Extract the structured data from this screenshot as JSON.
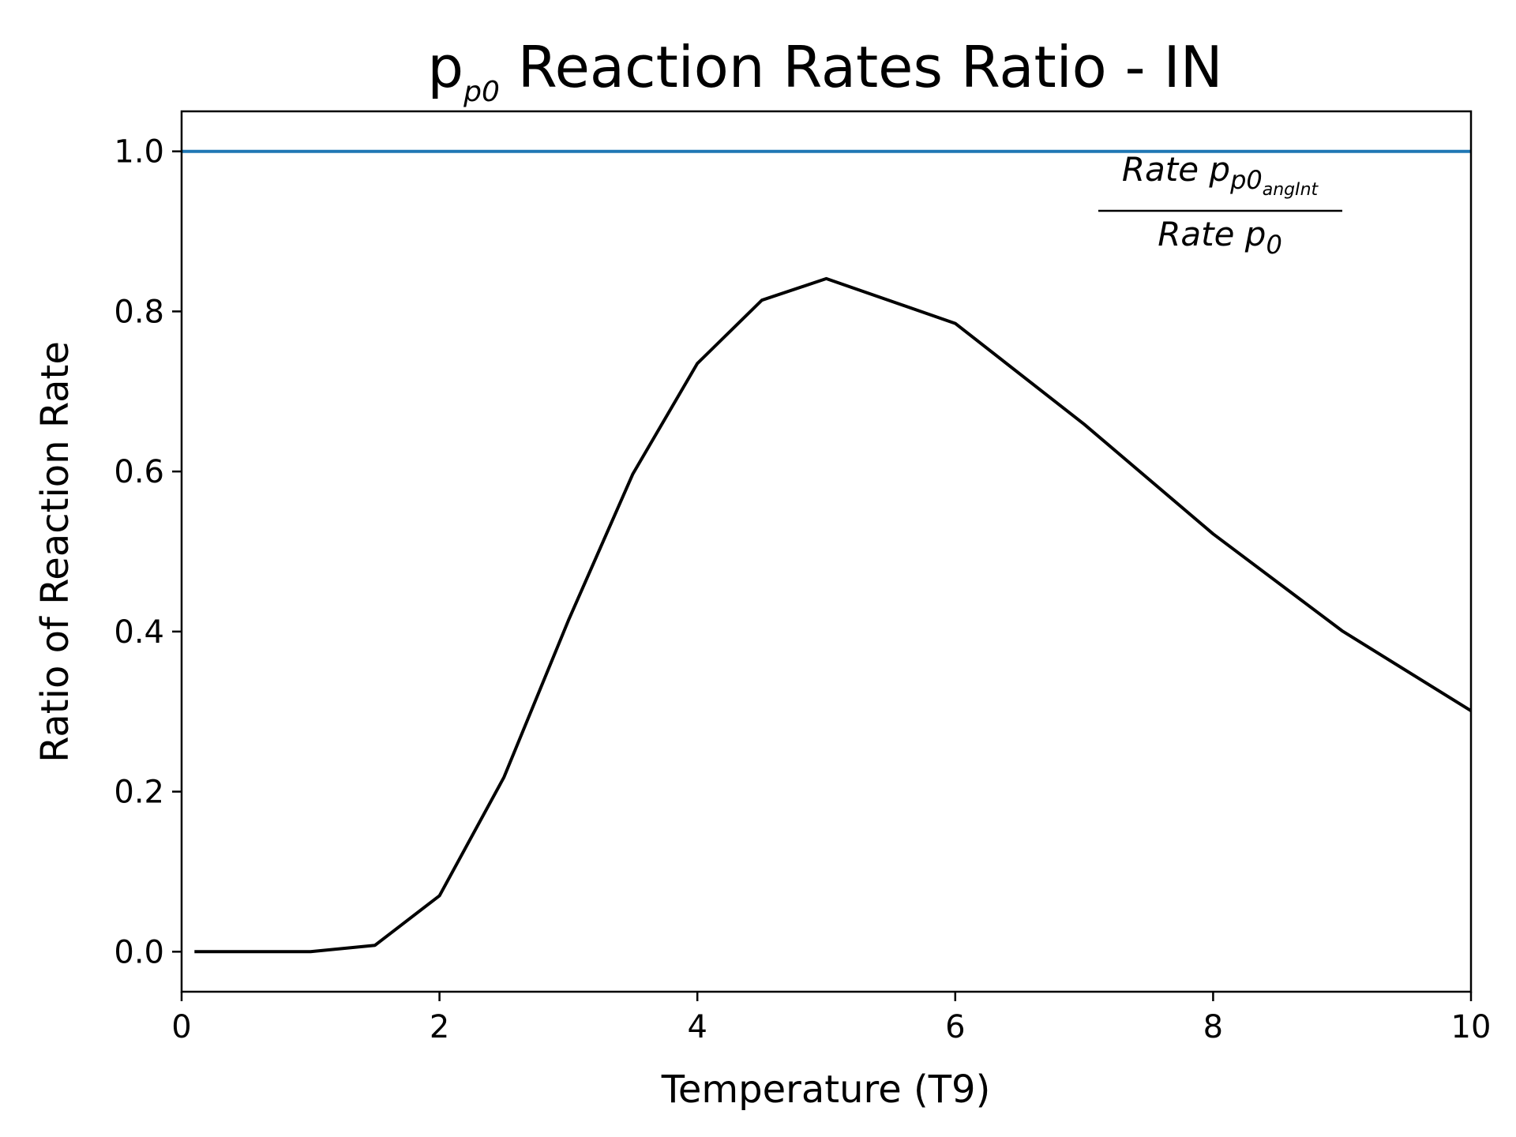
{
  "chart_data": {
    "type": "line",
    "title": {
      "main": "p",
      "sub": "p0",
      "rest": " Reaction Rates Ratio - IN"
    },
    "xlabel": "Temperature (T9)",
    "ylabel": "Ratio of Reaction Rate",
    "xlim": [
      0,
      10
    ],
    "ylim": [
      -0.05,
      1.05
    ],
    "x_ticks": [
      0,
      2,
      4,
      6,
      8,
      10
    ],
    "x_tick_labels": [
      "0",
      "2",
      "4",
      "6",
      "8",
      "10"
    ],
    "y_ticks": [
      0.0,
      0.2,
      0.4,
      0.6,
      0.8,
      1.0
    ],
    "y_tick_labels": [
      "0.0",
      "0.2",
      "0.4",
      "0.6",
      "0.8",
      "1.0"
    ],
    "grid": false,
    "annotation": {
      "numerator": {
        "text": "Rate p",
        "sub": "p0",
        "subsub": "angInt"
      },
      "denominator": {
        "text": "Rate p",
        "sub": "0"
      }
    },
    "series": [
      {
        "style": "reference-line",
        "color": "#1f77b4",
        "x": [
          0,
          10
        ],
        "y": [
          1.0,
          1.0
        ]
      },
      {
        "style": "data-line",
        "color": "#000000",
        "x": [
          0.1,
          1.0,
          1.5,
          2.0,
          2.5,
          3.0,
          3.5,
          4.0,
          4.5,
          5.0,
          6.0,
          7.0,
          8.0,
          9.0,
          10.0
        ],
        "y": [
          0.0,
          0.0,
          0.008,
          0.07,
          0.218,
          0.414,
          0.597,
          0.735,
          0.814,
          0.841,
          0.785,
          0.659,
          0.522,
          0.401,
          0.301
        ]
      }
    ]
  }
}
